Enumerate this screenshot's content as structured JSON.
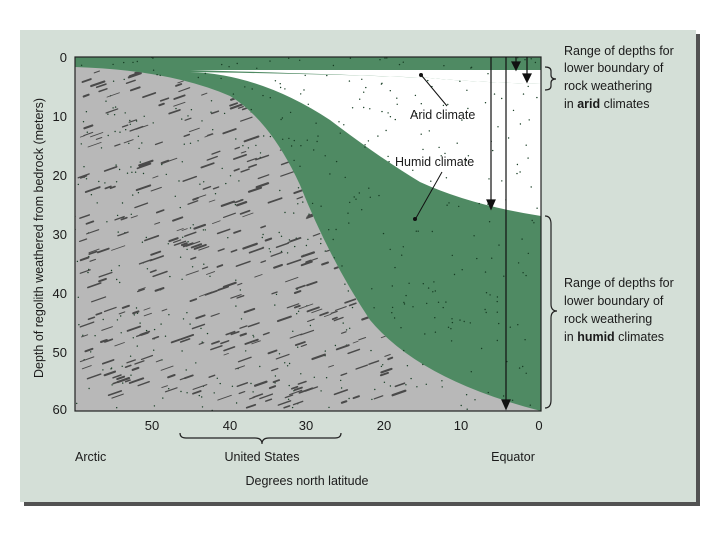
{
  "figure": {
    "y_axis_label": "Depth of regolith weathered from bedrock (meters)",
    "x_axis_label": "Degrees north latitude",
    "y_ticks": [
      "0",
      "10",
      "20",
      "30",
      "40",
      "50",
      "60"
    ],
    "x_ticks": [
      "50",
      "40",
      "30",
      "20",
      "10",
      "0"
    ],
    "region_labels": {
      "arctic": "Arctic",
      "united_states": "United States",
      "equator": "Equator"
    },
    "curve_labels": {
      "arid": "Arid climate",
      "humid": "Humid climate"
    },
    "arid_range_note": {
      "lines": [
        "Range of depths for",
        "lower boundary of",
        "rock weathering"
      ],
      "last_prefix": "in ",
      "last_bold": "arid",
      "last_suffix": " climates"
    },
    "humid_range_note": {
      "lines": [
        "Range of depths for",
        "lower boundary of",
        "rock weathering"
      ],
      "last_prefix": "in ",
      "last_bold": "humid",
      "last_suffix": " climates"
    },
    "colors": {
      "panel": "#d4dfd7",
      "regolith": "#4f8a63",
      "bedrock": "#b8b8b8",
      "bedrock_marks": "#4a4a4a",
      "air": "#ffffff"
    }
  }
}
